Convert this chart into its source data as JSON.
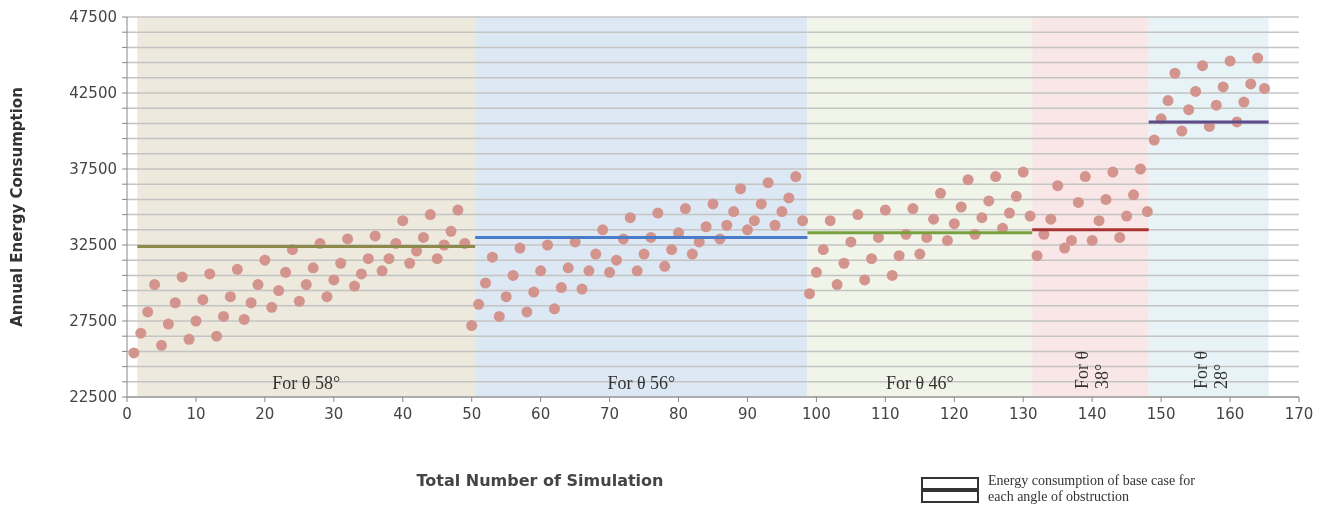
{
  "chart_data": {
    "type": "scatter",
    "xlabel": "Total Number of Simulation",
    "ylabel": "Annual Energy Consumption",
    "xlim": [
      0,
      170
    ],
    "xticks": [
      0,
      10,
      20,
      30,
      40,
      50,
      60,
      70,
      80,
      90,
      100,
      110,
      120,
      130,
      140,
      150,
      160,
      170
    ],
    "ylim": [
      22500,
      47500
    ],
    "yticks": [
      22500,
      {
        "value": 23500,
        "label": null
      },
      {
        "value": 24500,
        "label": null
      },
      {
        "value": 25500,
        "label": null
      },
      {
        "value": 26500,
        "label": null
      },
      27500,
      {
        "value": 28500,
        "label": null
      },
      {
        "value": 29500,
        "label": null
      },
      {
        "value": 30500,
        "label": null
      },
      {
        "value": 31500,
        "label": null
      },
      32500,
      {
        "value": 33500,
        "label": null
      },
      {
        "value": 34500,
        "label": null
      },
      {
        "value": 35500,
        "label": null
      },
      {
        "value": 36500,
        "label": null
      },
      37500,
      {
        "value": 38500,
        "label": null
      },
      {
        "value": 39500,
        "label": null
      },
      {
        "value": 40500,
        "label": null
      },
      {
        "value": 41500,
        "label": null
      },
      42500,
      {
        "value": 43500,
        "label": null
      },
      {
        "value": 44500,
        "label": null
      },
      {
        "value": 45500,
        "label": null
      },
      {
        "value": 46500,
        "label": null
      },
      47500
    ],
    "grid": "y",
    "marker": "circle",
    "bands": [
      {
        "axis": "x",
        "from": 1.5,
        "to": 50.5,
        "label": "For θ 58°",
        "color": "#ede9dc"
      },
      {
        "axis": "x",
        "from": 50.5,
        "to": 98.7,
        "label": "For θ 56°",
        "color": "#dde8f5"
      },
      {
        "axis": "x",
        "from": 98.7,
        "to": 131.3,
        "label": "For θ 46°",
        "color": "#f1f4e8"
      },
      {
        "axis": "x",
        "from": 131.3,
        "to": 148.2,
        "label": "For θ 38°",
        "color": "#f9e6e6"
      },
      {
        "axis": "x",
        "from": 148.2,
        "to": 165.6,
        "label": "For θ 28°",
        "color": "#e7f3f6"
      }
    ],
    "annotations": [
      "Energy consumption of base case for each angle of obstruction"
    ],
    "series": [
      {
        "color": "#d4948e",
        "x": [
          1,
          2,
          3,
          4,
          5,
          6,
          7,
          8,
          9,
          10,
          11,
          12,
          13,
          14,
          15,
          16,
          17,
          18,
          19,
          20,
          21,
          22,
          23,
          24,
          25,
          26,
          27,
          28,
          29,
          30,
          31,
          32,
          33,
          34,
          35,
          36,
          37,
          38,
          39,
          40,
          41,
          42,
          43,
          44,
          45,
          46,
          47,
          48,
          49,
          50,
          51,
          52,
          53,
          54,
          55,
          56,
          57,
          58,
          59,
          60,
          61,
          62,
          63,
          64,
          65,
          66,
          67,
          68,
          69,
          70,
          71,
          72,
          73,
          74,
          75,
          76,
          77,
          78,
          79,
          80,
          81,
          82,
          83,
          84,
          85,
          86,
          87,
          88,
          89,
          90,
          91,
          92,
          93,
          94,
          95,
          96,
          97,
          98,
          99,
          100,
          101,
          102,
          103,
          104,
          105,
          106,
          107,
          108,
          109,
          110,
          111,
          112,
          113,
          114,
          115,
          116,
          117,
          118,
          119,
          120,
          121,
          122,
          123,
          124,
          125,
          126,
          127,
          128,
          129,
          130,
          131,
          132,
          133,
          134,
          135,
          136,
          137,
          138,
          139,
          140,
          141,
          142,
          143,
          144,
          145,
          146,
          147,
          148,
          149,
          150,
          151,
          152,
          153,
          154,
          155,
          156,
          157,
          158,
          159,
          160,
          161,
          162,
          163,
          164,
          165
        ],
        "values": [
          25400,
          26700,
          28100,
          29900,
          25900,
          27300,
          28700,
          30400,
          26300,
          27500,
          28900,
          30600,
          26500,
          27800,
          29100,
          30900,
          27600,
          28700,
          29900,
          31500,
          28400,
          29500,
          30700,
          32200,
          28800,
          29900,
          31000,
          32600,
          29100,
          30200,
          31300,
          32900,
          29800,
          30600,
          31600,
          33100,
          30800,
          31600,
          32600,
          34100,
          31300,
          32100,
          33000,
          34500,
          31600,
          32500,
          33400,
          34800,
          32600,
          27200,
          28600,
          30000,
          31700,
          27800,
          29100,
          30500,
          32300,
          28100,
          29400,
          30800,
          32500,
          28300,
          29700,
          31000,
          32700,
          29600,
          30800,
          31900,
          33500,
          30700,
          31500,
          32900,
          34300,
          30800,
          31900,
          33000,
          34600,
          31100,
          32200,
          33300,
          34900,
          31900,
          32700,
          33700,
          35200,
          32900,
          33800,
          34700,
          36200,
          33500,
          34100,
          35200,
          36600,
          33800,
          34700,
          35600,
          37000,
          34100,
          29300,
          30700,
          32200,
          34100,
          29900,
          31300,
          32700,
          34500,
          30200,
          31600,
          33000,
          34800,
          30500,
          31800,
          33200,
          34900,
          31900,
          33000,
          34200,
          35900,
          32800,
          33900,
          35000,
          36800,
          33200,
          34300,
          35400,
          37000,
          33600,
          34600,
          35700,
          37300,
          34400,
          31800,
          33200,
          34200,
          36400,
          32300,
          32800,
          35300,
          37000,
          32800,
          34100,
          35500,
          37300,
          33000,
          34400,
          35800,
          37500,
          34700,
          39400,
          40800,
          42000,
          43800,
          40000,
          41400,
          42600,
          44300,
          40300,
          41700,
          42900,
          44600,
          40600,
          41900,
          43100,
          44800,
          42800
        ]
      },
      {
        "type": "line",
        "marker": "none",
        "color": "#8e8a4c",
        "x": [
          1.5,
          50.5
        ],
        "values": [
          32400,
          32400
        ]
      },
      {
        "type": "line",
        "marker": "none",
        "color": "#4a7cc8",
        "x": [
          50.5,
          98.7
        ],
        "values": [
          33000,
          33000
        ]
      },
      {
        "type": "line",
        "marker": "none",
        "color": "#78a03c",
        "x": [
          98.7,
          131.3
        ],
        "values": [
          33300,
          33300
        ]
      },
      {
        "type": "line",
        "marker": "none",
        "color": "#a83434",
        "x": [
          131.3,
          148.2
        ],
        "values": [
          33500,
          33500
        ]
      },
      {
        "type": "line",
        "marker": "none",
        "color": "#5c4c8c",
        "x": [
          148.2,
          165.6
        ],
        "values": [
          40600,
          40600
        ]
      }
    ]
  }
}
